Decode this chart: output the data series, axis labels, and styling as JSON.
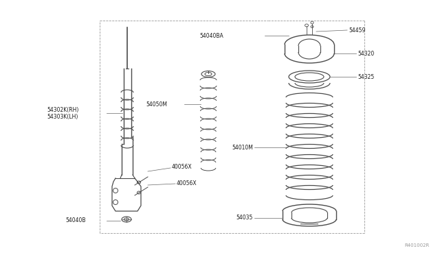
{
  "background_color": "#ffffff",
  "line_color": "#4a4a4a",
  "text_color": "#1a1a1a",
  "fig_width": 6.4,
  "fig_height": 3.72,
  "dpi": 100,
  "watermark": "R401002R",
  "labels": {
    "54302K_RH": "54302K(RH)",
    "54303K_LH": "54303K(LH)",
    "40056X_top": "40056X",
    "40056X_bot": "40056X",
    "54050M": "54050M",
    "54040B": "54040B",
    "54040BA": "54040BA",
    "54459": "54459",
    "54320": "54320",
    "54325": "54325",
    "54010M": "54010M",
    "54035": "54035"
  }
}
